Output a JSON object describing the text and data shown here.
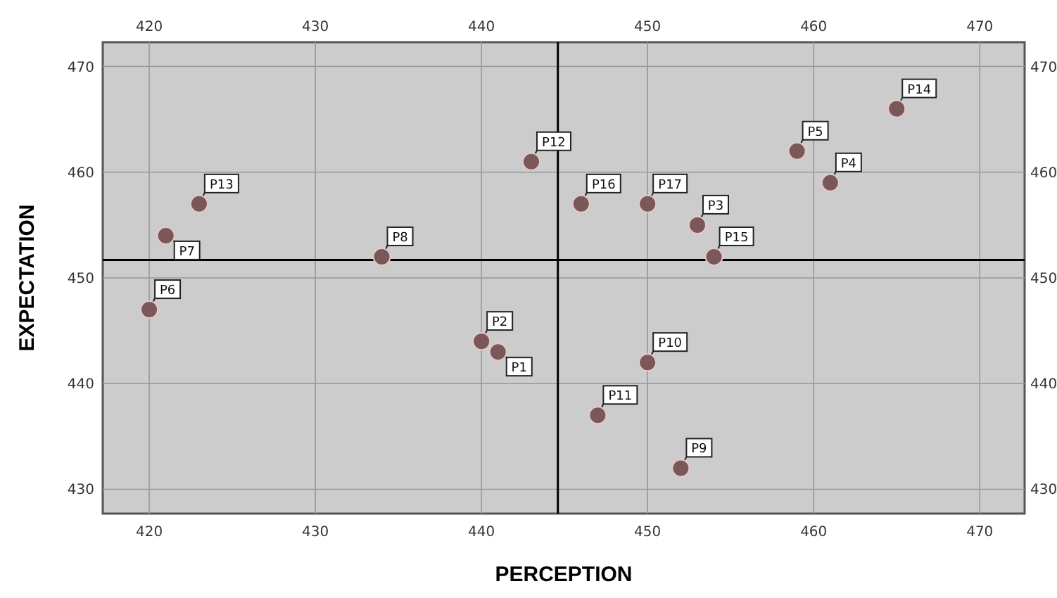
{
  "chart_data": {
    "type": "scatter",
    "xlabel": "PERCEPTION",
    "ylabel": "EXPECTATION",
    "x": [
      441,
      440,
      453,
      461,
      459,
      420,
      421,
      434,
      452,
      450,
      447,
      443,
      423,
      465,
      454,
      446,
      450
    ],
    "values": [
      443,
      444,
      455,
      459,
      462,
      447,
      454,
      452,
      432,
      442,
      437,
      461,
      457,
      466,
      452,
      457,
      457
    ],
    "color": "#7a5759",
    "marker": "circle",
    "annotations": [
      {
        "text": "P1",
        "x": 441,
        "y": 443
      },
      {
        "text": "P2",
        "x": 440,
        "y": 444
      },
      {
        "text": "P3",
        "x": 453,
        "y": 455
      },
      {
        "text": "P4",
        "x": 461,
        "y": 459
      },
      {
        "text": "P5",
        "x": 459,
        "y": 462
      },
      {
        "text": "P6",
        "x": 420,
        "y": 447
      },
      {
        "text": "P7",
        "x": 421,
        "y": 454
      },
      {
        "text": "P8",
        "x": 434,
        "y": 452
      },
      {
        "text": "P9",
        "x": 452,
        "y": 432
      },
      {
        "text": "P10",
        "x": 450,
        "y": 442
      },
      {
        "text": "P11",
        "x": 447,
        "y": 437
      },
      {
        "text": "P12",
        "x": 443,
        "y": 461
      },
      {
        "text": "P13",
        "x": 423,
        "y": 457
      },
      {
        "text": "P14",
        "x": 465,
        "y": 466
      },
      {
        "text": "P15",
        "x": 454,
        "y": 452
      },
      {
        "text": "P16",
        "x": 446,
        "y": 457
      },
      {
        "text": "P17",
        "x": 450,
        "y": 457
      }
    ],
    "xlim": [
      417.2,
      472.7
    ],
    "xticks": [
      420,
      430,
      440,
      450,
      460,
      470
    ],
    "x2lim": [
      417.2,
      472.7
    ],
    "x2ticks": [
      420,
      430,
      440,
      450,
      460,
      470
    ],
    "ylim": [
      427.7,
      472.3
    ],
    "yticks": [
      430,
      440,
      450,
      460,
      470
    ],
    "y2lim": [
      427.7,
      472.3
    ],
    "y2ticks": [
      430,
      440,
      450,
      460,
      470
    ],
    "ref_lines": [
      {
        "axis": "x",
        "value": 444.6,
        "color": "#000000"
      },
      {
        "axis": "y",
        "value": 451.7,
        "color": "#000000"
      }
    ],
    "grid": true
  }
}
